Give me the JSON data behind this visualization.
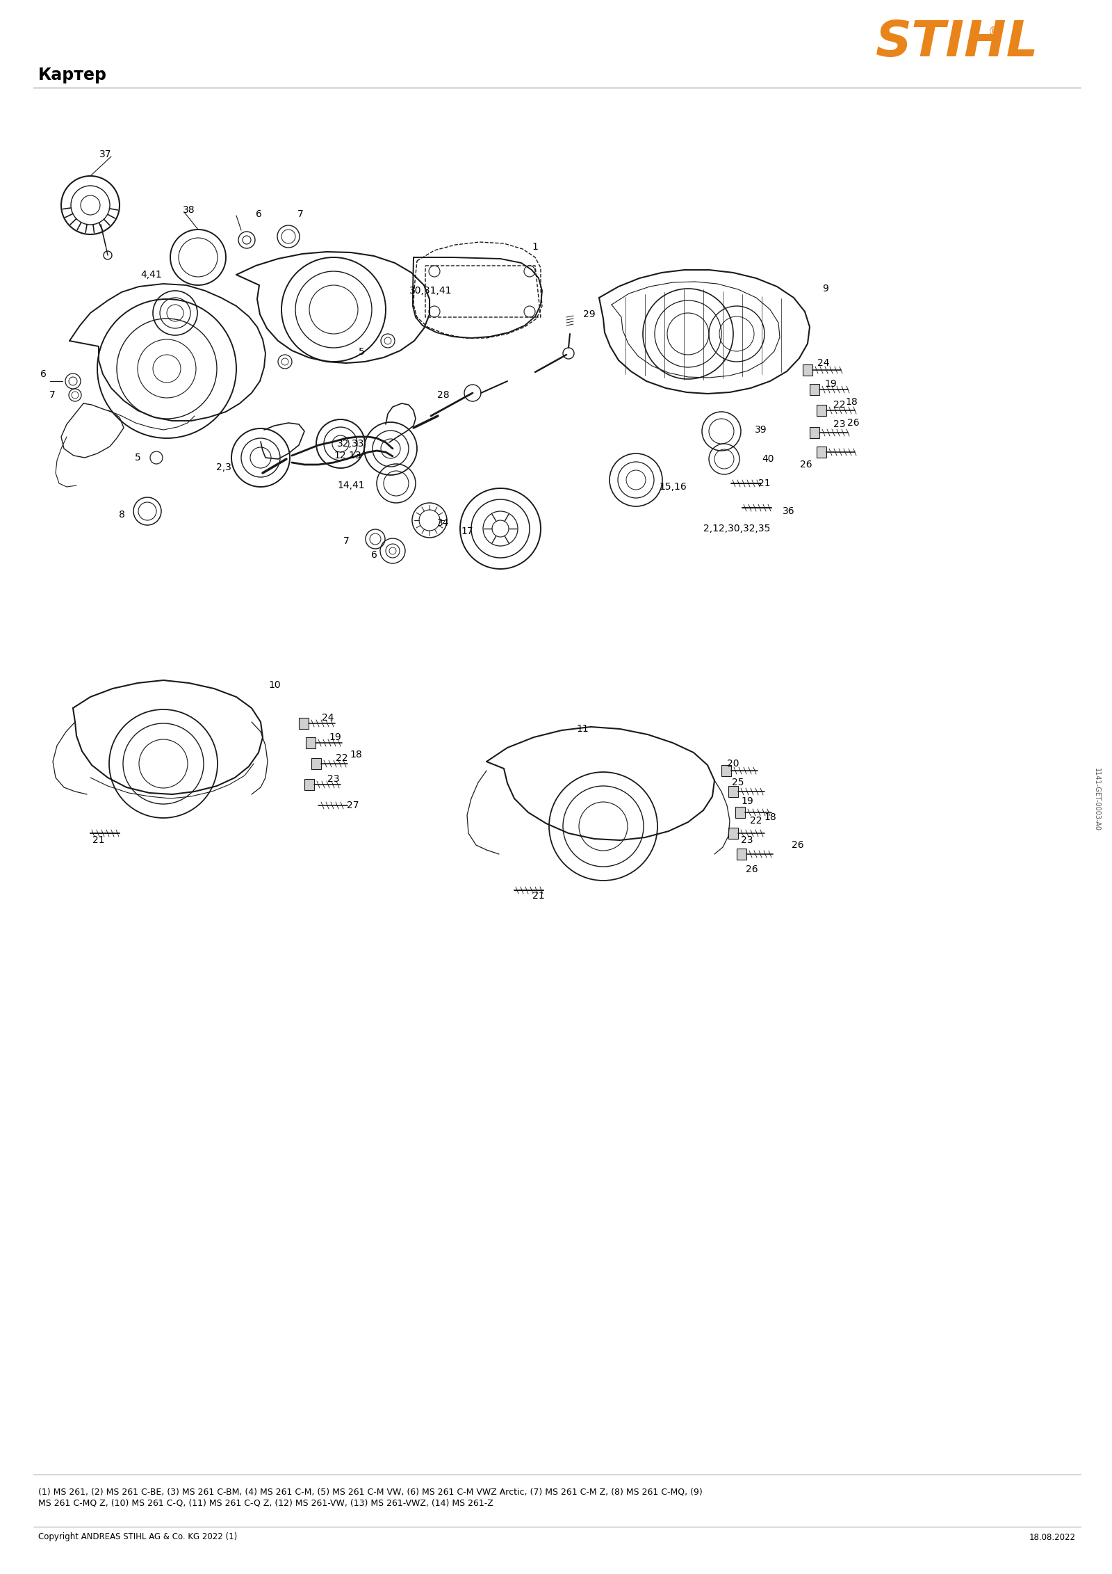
{
  "title": "Картер",
  "logo_color": "#E8841A",
  "background_color": "#FFFFFF",
  "line_color": "#AAAAAA",
  "text_color": "#111111",
  "diagram_color": "#1a1a1a",
  "section_title_fontsize": 15,
  "footer_text_line1": "(1) MS 261, (2) MS 261 C-BE, (3) MS 261 C-BM, (4) MS 261 C-M, (5) MS 261 C-M VW, (6) MS 261 C-M VWZ Arctic, (7) MS 261 C-M Z, (8) MS 261 C-MQ, (9)",
  "footer_text_line2": "MS 261 C-MQ Z, (10) MS 261 C-Q, (11) MS 261 C-Q Z, (12) MS 261-VW, (13) MS 261-VWZ, (14) MS 261-Z",
  "copyright_text": "Copyright ANDREAS STIHL AG & Co. KG 2022 (1)",
  "date_text": "18.08.2022",
  "side_text": "1141-GET-0003-A0",
  "figsize": [
    16.0,
    22.63
  ],
  "dpi": 100
}
